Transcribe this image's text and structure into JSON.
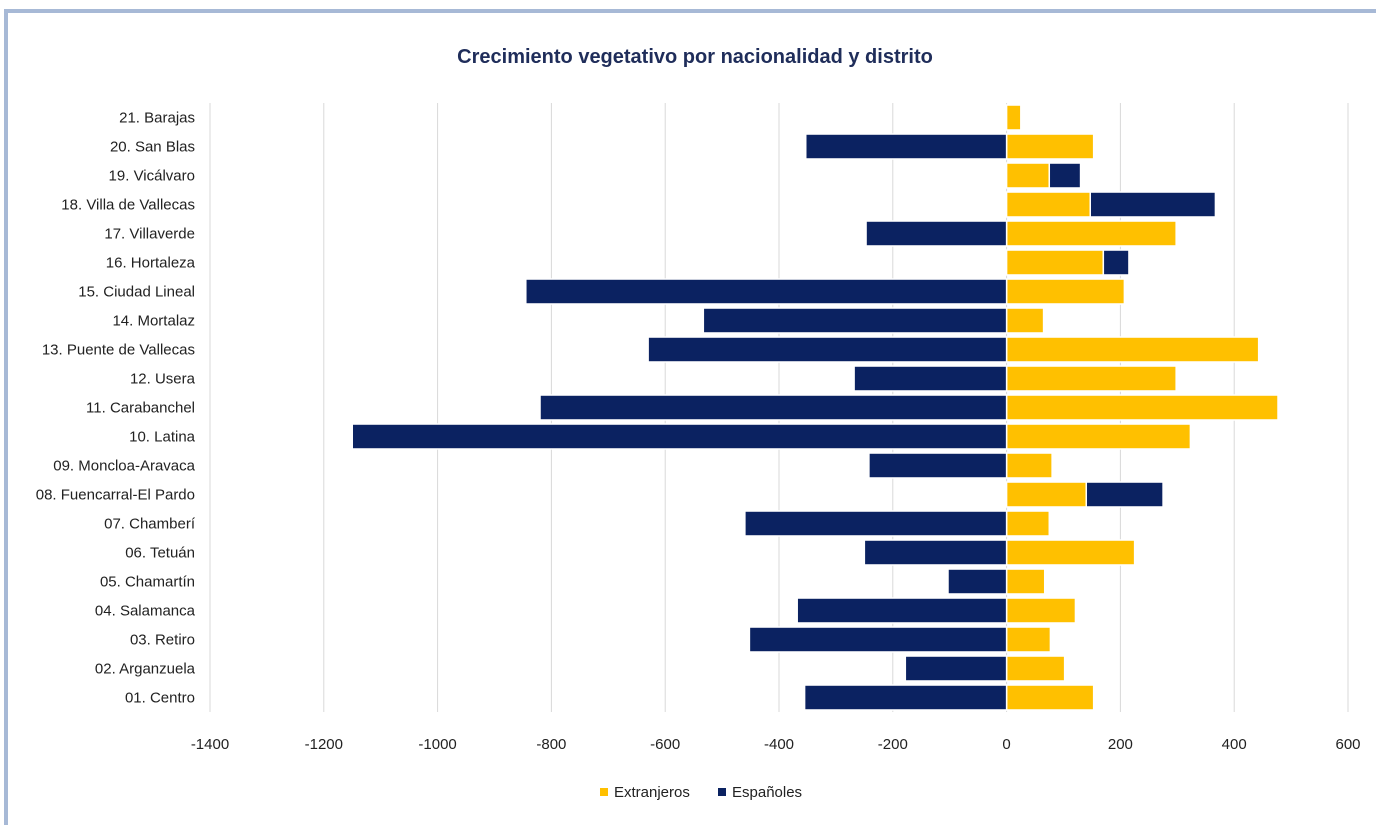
{
  "chart_data": {
    "type": "bar",
    "orientation": "horizontal",
    "stacked": true,
    "title": "Crecimiento vegetativo por nacionalidad y distrito",
    "xlabel": "",
    "ylabel": "",
    "xlim": [
      -1400,
      600
    ],
    "x_ticks": [
      "-1400",
      "-1200",
      "-1000",
      "-800",
      "-600",
      "-400",
      "-200",
      "0",
      "200",
      "400",
      "600"
    ],
    "grid": "vertical",
    "legend_position": "bottom",
    "categories": [
      "01. Centro",
      "02. Arganzuela",
      "03. Retiro",
      "04. Salamanca",
      "05. Chamartín",
      "06. Tetuán",
      "07. Chamberí",
      "08. Fuencarral-El Pardo",
      "09. Moncloa-Aravaca",
      "10. Latina",
      "11. Carabanchel",
      "12. Usera",
      "13. Puente de Vallecas",
      "14. Mortalaz",
      "15. Ciudad Lineal",
      "16. Hortaleza",
      "17. Villaverde",
      "18. Villa de Vallecas",
      "19. Vicálvaro",
      "20. San Blas",
      "21. Barajas"
    ],
    "series": [
      {
        "name": "Extranjeros",
        "color": "#ffc000",
        "values": [
          153,
          102,
          77,
          121,
          67,
          225,
          75,
          140,
          80,
          323,
          477,
          298,
          443,
          65,
          207,
          170,
          298,
          147,
          75,
          153,
          25
        ]
      },
      {
        "name": "Españoles",
        "color": "#0b2261",
        "values": [
          -355,
          -178,
          -452,
          -368,
          -103,
          -250,
          -460,
          135,
          -242,
          -1150,
          -820,
          -268,
          -630,
          -533,
          -845,
          45,
          -247,
          220,
          55,
          -353,
          0
        ]
      }
    ]
  }
}
